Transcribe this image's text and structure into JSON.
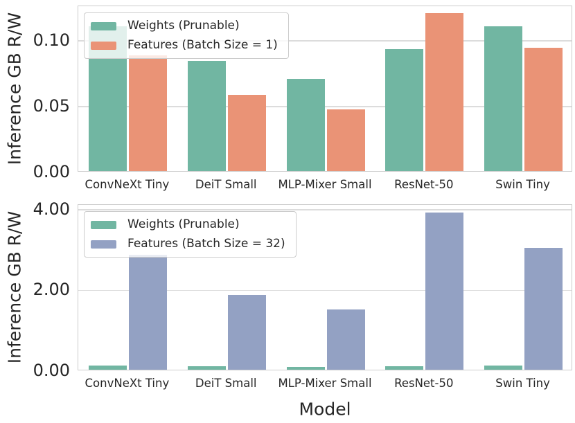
{
  "figure": {
    "background": "#ffffff",
    "text_color": "#262626",
    "grid_color": "#dcdcdc",
    "spine_color": "#cccccc"
  },
  "chart_data": [
    {
      "type": "bar",
      "title": "",
      "xlabel": "",
      "ylabel": "Inference GB R/W",
      "categories": [
        "ConvNeXt Tiny",
        "DeiT Small",
        "MLP-Mixer Small",
        "ResNet-50",
        "Swin Tiny"
      ],
      "series": [
        {
          "name": "Weights (Prunable)",
          "color": "#71b6a2",
          "values": [
            0.11,
            0.084,
            0.07,
            0.093,
            0.11
          ]
        },
        {
          "name": "Features (Batch Size = 1)",
          "color": "#ea9376",
          "values": [
            0.088,
            0.058,
            0.047,
            0.12,
            0.094
          ]
        }
      ],
      "ylim": [
        0,
        0.1265
      ],
      "yticks": [
        0.0,
        0.05,
        0.1
      ],
      "ytick_labels": [
        "0.00",
        "0.05",
        "0.10"
      ],
      "grid": true,
      "legend_position": "upper left"
    },
    {
      "type": "bar",
      "title": "",
      "xlabel": "Model",
      "ylabel": "Inference GB R/W",
      "categories": [
        "ConvNeXt Tiny",
        "DeiT Small",
        "MLP-Mixer Small",
        "ResNet-50",
        "Swin Tiny"
      ],
      "series": [
        {
          "name": "Weights (Prunable)",
          "color": "#71b6a2",
          "values": [
            0.11,
            0.084,
            0.07,
            0.093,
            0.11
          ]
        },
        {
          "name": "Features (Batch Size = 32)",
          "color": "#93a1c3",
          "values": [
            2.85,
            1.86,
            1.49,
            3.89,
            3.03
          ]
        }
      ],
      "ylim": [
        0,
        4.12
      ],
      "yticks": [
        0.0,
        2.0,
        4.0
      ],
      "ytick_labels": [
        "0.00",
        "2.00",
        "4.00"
      ],
      "grid": true,
      "legend_position": "upper left"
    }
  ]
}
